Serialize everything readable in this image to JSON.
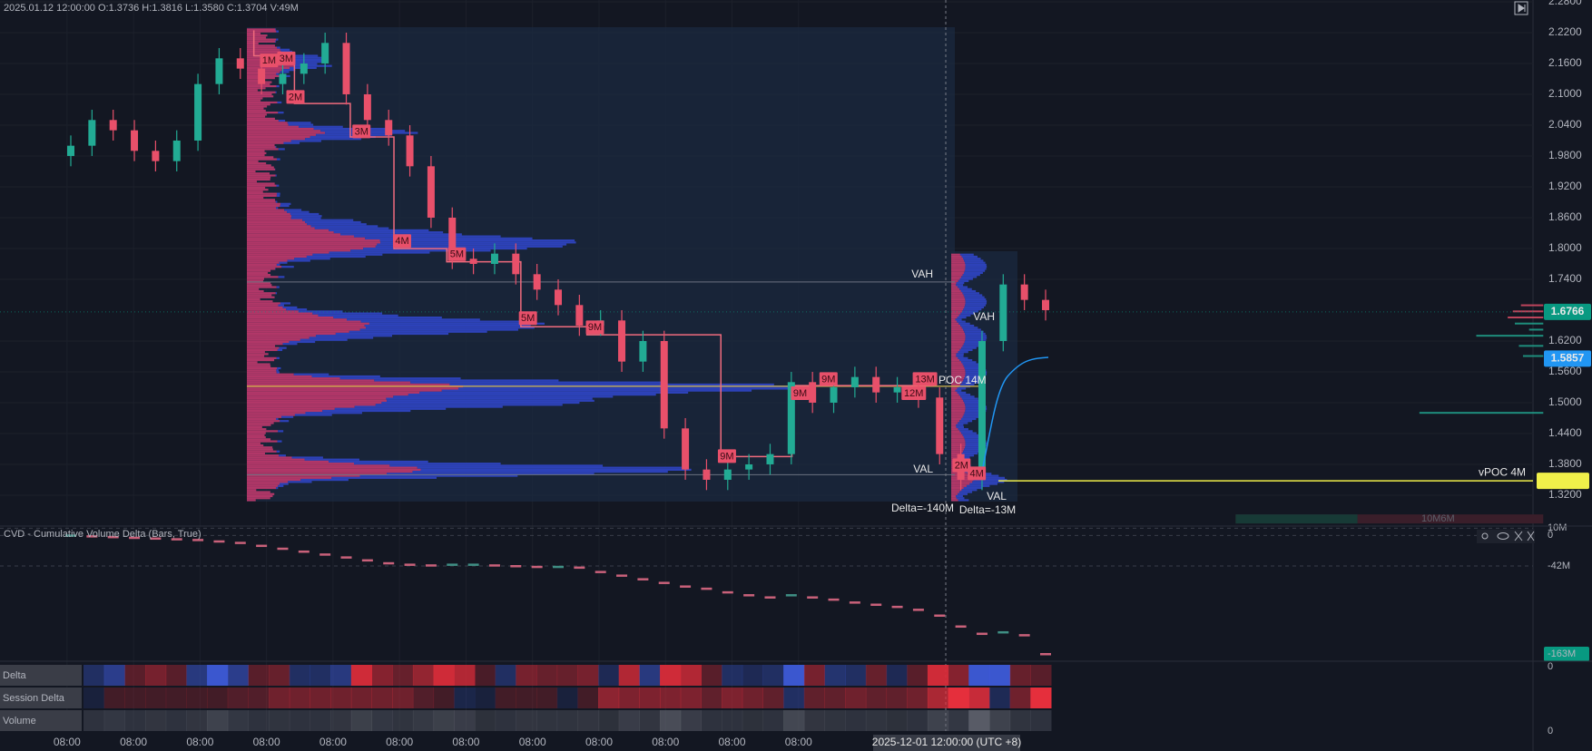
{
  "header": {
    "ohlc_text": "2025.01.12 12:00:00 O:1.3736 H:1.3816 L:1.3580 C:1.3704 V:49M"
  },
  "chart_data": [
    {
      "type": "candlestick",
      "open": [
        1.98,
        2.0,
        2.05,
        2.03,
        1.99,
        1.97,
        2.01,
        2.12,
        2.17,
        2.15,
        2.12,
        2.14,
        2.16,
        2.2,
        2.1,
        2.05,
        2.02,
        1.96,
        1.86,
        1.78,
        1.77,
        1.79,
        1.75,
        1.72,
        1.69,
        1.65,
        1.66,
        1.58,
        1.62,
        1.45,
        1.37,
        1.35,
        1.37,
        1.38,
        1.4,
        1.54,
        1.5,
        1.53,
        1.55,
        1.52,
        1.53,
        1.51,
        1.4,
        1.35,
        1.62,
        1.73,
        1.7
      ],
      "high": [
        2.02,
        2.07,
        2.07,
        2.05,
        2.01,
        2.03,
        2.14,
        2.19,
        2.19,
        2.17,
        2.16,
        2.18,
        2.22,
        2.22,
        2.12,
        2.07,
        2.04,
        1.98,
        1.88,
        1.8,
        1.81,
        1.81,
        1.77,
        1.74,
        1.71,
        1.68,
        1.68,
        1.64,
        1.64,
        1.47,
        1.39,
        1.39,
        1.4,
        1.42,
        1.56,
        1.56,
        1.55,
        1.57,
        1.57,
        1.55,
        1.55,
        1.53,
        1.42,
        1.64,
        1.75,
        1.75,
        1.72
      ],
      "low": [
        1.96,
        1.98,
        2.01,
        1.97,
        1.95,
        1.95,
        1.99,
        2.1,
        2.13,
        2.1,
        2.1,
        2.12,
        2.14,
        2.08,
        2.03,
        2.0,
        1.94,
        1.84,
        1.76,
        1.75,
        1.75,
        1.73,
        1.7,
        1.67,
        1.63,
        1.63,
        1.56,
        1.56,
        1.43,
        1.35,
        1.33,
        1.33,
        1.35,
        1.36,
        1.38,
        1.48,
        1.48,
        1.51,
        1.5,
        1.5,
        1.49,
        1.38,
        1.33,
        1.33,
        1.6,
        1.68,
        1.66
      ],
      "close": [
        2.0,
        2.05,
        2.03,
        1.99,
        1.97,
        2.01,
        2.12,
        2.17,
        2.15,
        2.12,
        2.14,
        2.16,
        2.2,
        2.1,
        2.05,
        2.02,
        1.96,
        1.86,
        1.78,
        1.77,
        1.79,
        1.75,
        1.72,
        1.69,
        1.65,
        1.66,
        1.58,
        1.62,
        1.45,
        1.37,
        1.35,
        1.37,
        1.38,
        1.4,
        1.54,
        1.5,
        1.53,
        1.55,
        1.52,
        1.53,
        1.51,
        1.4,
        1.35,
        1.62,
        1.73,
        1.7,
        1.68
      ],
      "up_color": "#22ab94",
      "down_color": "#e8506a",
      "ylim": [
        1.2635,
        2.2835
      ],
      "yticks": [
        {
          "value": 2.28,
          "label": "2.2800"
        },
        {
          "value": 2.22,
          "label": "2.2200"
        },
        {
          "value": 2.16,
          "label": "2.1600"
        },
        {
          "value": 2.1,
          "label": "2.1000"
        },
        {
          "value": 2.04,
          "label": "2.0400"
        },
        {
          "value": 1.98,
          "label": "1.9800"
        },
        {
          "value": 1.92,
          "label": "1.9200"
        },
        {
          "value": 1.86,
          "label": "1.8600"
        },
        {
          "value": 1.8,
          "label": "1.8000"
        },
        {
          "value": 1.74,
          "label": "1.7400"
        },
        {
          "value": 1.62,
          "label": "1.6200"
        },
        {
          "value": 1.56,
          "label": "1.5600"
        },
        {
          "value": 1.5,
          "label": "1.5000"
        },
        {
          "value": 1.44,
          "label": "1.4400"
        },
        {
          "value": 1.38,
          "label": "1.3800"
        },
        {
          "value": 1.32,
          "label": "1.3200"
        }
      ],
      "price_tags": [
        {
          "value": 1.6766,
          "color": "#089981"
        },
        {
          "value": 1.5857,
          "color": "#2196f3"
        }
      ],
      "levels": {
        "vah": 1.735,
        "poc": 1.532,
        "val": 1.36,
        "vpoc": 1.348
      },
      "vpoc_label": "vPOC 4M",
      "annotations": [
        "VAH",
        "VAH",
        "POC 14M",
        "VAL",
        "VAL",
        "Delta=-140M",
        "Delta=-13M"
      ],
      "level_labels": [
        "1M",
        "3M",
        "2M",
        "3M",
        "4M",
        "5M",
        "5M",
        "9M",
        "9M",
        "9M",
        "9M",
        "12M",
        "13M",
        "2M",
        "4M"
      ],
      "xtick_labels": [
        "08:00",
        "08:00",
        "08:00",
        "08:00",
        "08:00",
        "08:00",
        "08:00",
        "08:00",
        "08:00",
        "08:00",
        "08:00",
        "08:00"
      ],
      "crosshair_label": "2025-12-01 12:00:00 (UTC +8)"
    },
    {
      "type": "dash",
      "title": "CVD - Cumulative Volume Delta (Bars, True)",
      "values": [
        0,
        -1,
        -2,
        -3,
        -4,
        -5,
        -6,
        -8,
        -10,
        -14,
        -18,
        -22,
        -26,
        -30,
        -34,
        -38,
        -40,
        -41,
        -40,
        -40,
        -41,
        -42,
        -43,
        -43,
        -44,
        -50,
        -55,
        -60,
        -65,
        -70,
        -73,
        -78,
        -82,
        -85,
        -82,
        -85,
        -88,
        -92,
        -95,
        -98,
        -102,
        -110,
        -125,
        -135,
        -133,
        -137,
        -163
      ],
      "up_color": "#3f8f84",
      "down_color": "#c9617a",
      "ylim": [
        -170.5,
        10.4
      ],
      "yticks": [
        {
          "value": 10,
          "label": "10M"
        },
        0,
        {
          "value": -42,
          "label": "-42M"
        },
        {
          "value": -163,
          "label": "-163M"
        }
      ],
      "tag_color": "#089981"
    }
  ],
  "indicator_rows": [
    "Delta",
    "Session Delta",
    "Volume"
  ],
  "pane_labels": [
    "0",
    "0"
  ],
  "ghost_label": "10M6M"
}
